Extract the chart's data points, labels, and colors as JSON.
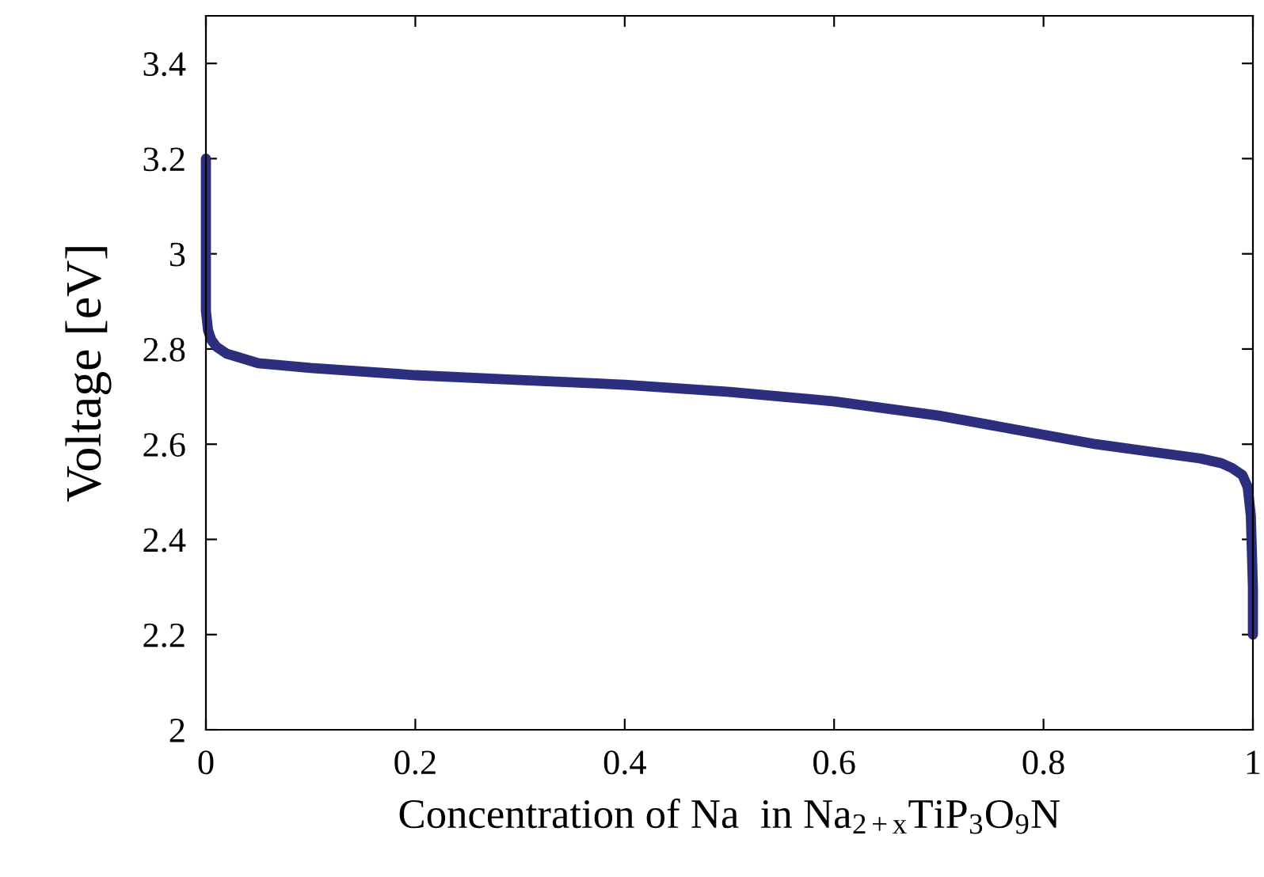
{
  "chart_data": {
    "type": "line",
    "xlabel": "Concentration of Na  in Na$_{2+x}$TiP$_{3}$O$_{9}$N",
    "ylabel": "Voltage [eV]",
    "x": [
      0,
      0,
      0,
      0.002,
      0.005,
      0.01,
      0.02,
      0.05,
      0.1,
      0.2,
      0.3,
      0.4,
      0.5,
      0.55,
      0.6,
      0.65,
      0.7,
      0.75,
      0.8,
      0.85,
      0.9,
      0.95,
      0.97,
      0.98,
      0.99,
      0.995,
      0.998,
      1,
      1
    ],
    "series": [
      {
        "color": "#2b2f7e",
        "values": [
          3.2,
          3.0,
          2.88,
          2.84,
          2.82,
          2.805,
          2.79,
          2.77,
          2.76,
          2.745,
          2.735,
          2.725,
          2.71,
          2.7,
          2.69,
          2.675,
          2.66,
          2.64,
          2.62,
          2.6,
          2.585,
          2.57,
          2.56,
          2.55,
          2.535,
          2.51,
          2.45,
          2.3,
          2.2
        ]
      }
    ],
    "xlim": [
      0,
      1
    ],
    "ylim": [
      2,
      3.5
    ],
    "xticks": [
      0,
      0.2,
      0.4,
      0.6,
      0.8,
      1
    ],
    "yticks": [
      2,
      2.2,
      2.4,
      2.6,
      2.8,
      3,
      3.2,
      3.4
    ],
    "grid": false,
    "legend": false,
    "marker": "none",
    "line_style": "solid"
  }
}
